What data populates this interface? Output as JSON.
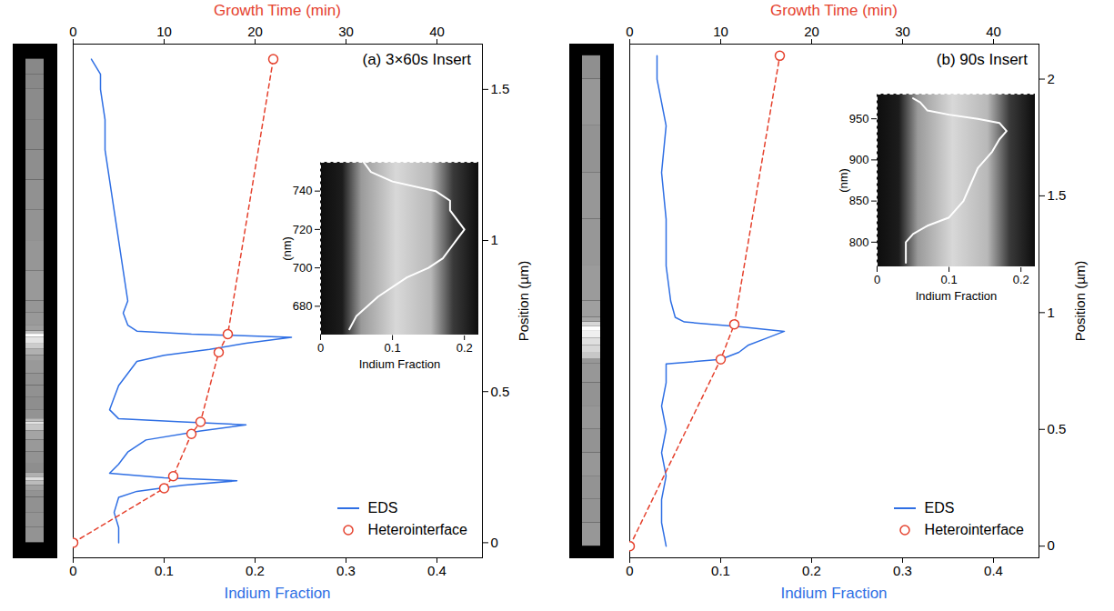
{
  "chart_data": [
    {
      "type": "line",
      "title": "(a) 3×60s Insert",
      "xlabel": "Indium Fraction",
      "x2label": "Growth Time (min)",
      "ylabel": "Position (µm)",
      "xlim": [
        0,
        0.45
      ],
      "xticks": [
        0,
        0.1,
        0.2,
        0.3,
        0.4
      ],
      "x2lim": [
        0,
        45
      ],
      "x2ticks": [
        0,
        10,
        20,
        30,
        40
      ],
      "ylim": [
        -0.05,
        1.65
      ],
      "yticks": [
        0,
        0.5,
        1,
        1.5
      ],
      "legend": "lower right",
      "series": [
        {
          "name": "EDS",
          "color": "#2f6fe4",
          "line_style": "solid",
          "x": [
            0.05,
            0.05,
            0.045,
            0.05,
            0.07,
            0.12,
            0.18,
            0.1,
            0.04,
            0.05,
            0.06,
            0.08,
            0.14,
            0.19,
            0.12,
            0.05,
            0.04,
            0.045,
            0.05,
            0.06,
            0.07,
            0.1,
            0.15,
            0.19,
            0.24,
            0.13,
            0.07,
            0.06,
            0.055,
            0.06,
            0.055,
            0.05,
            0.045,
            0.04,
            0.035,
            0.035,
            0.03,
            0.03,
            0.02
          ],
          "y": [
            0,
            0.05,
            0.1,
            0.15,
            0.17,
            0.19,
            0.205,
            0.215,
            0.23,
            0.26,
            0.3,
            0.34,
            0.37,
            0.39,
            0.4,
            0.41,
            0.44,
            0.48,
            0.52,
            0.56,
            0.6,
            0.62,
            0.64,
            0.66,
            0.68,
            0.69,
            0.7,
            0.72,
            0.76,
            0.8,
            0.9,
            1.0,
            1.1,
            1.2,
            1.3,
            1.4,
            1.5,
            1.55,
            1.6
          ]
        },
        {
          "name": "Heterointerface",
          "color": "#e5412d",
          "axis": "x2",
          "line_style": "dashed",
          "marker": "circle",
          "x": [
            0,
            10,
            11,
            13,
            14,
            16,
            17,
            22
          ],
          "y": [
            0,
            0.18,
            0.22,
            0.36,
            0.4,
            0.63,
            0.69,
            1.6
          ]
        }
      ],
      "inset": {
        "type": "line",
        "xlabel": "Indium Fraction",
        "ylabel": "(nm)",
        "xlim": [
          0,
          0.22
        ],
        "xticks": [
          0,
          0.1,
          0.2
        ],
        "ylim": [
          665,
          755
        ],
        "yticks": [
          680,
          700,
          720,
          740
        ],
        "series": [
          {
            "color": "#ffffff",
            "x": [
              0.04,
              0.05,
              0.08,
              0.12,
              0.15,
              0.17,
              0.18,
              0.19,
              0.2,
              0.19,
              0.18,
              0.18,
              0.16,
              0.1,
              0.07,
              0.06
            ],
            "y": [
              668,
              675,
              685,
              695,
              700,
              705,
              710,
              715,
              720,
              725,
              730,
              735,
              740,
              745,
              750,
              755
            ]
          }
        ]
      }
    },
    {
      "type": "line",
      "title": "(b) 90s Insert",
      "xlabel": "Indium Fraction",
      "x2label": "Growth Time (min)",
      "ylabel": "Position (µm)",
      "xlim": [
        0,
        0.45
      ],
      "xticks": [
        0,
        0.1,
        0.2,
        0.3,
        0.4
      ],
      "x2lim": [
        0,
        45
      ],
      "x2ticks": [
        0,
        10,
        20,
        30,
        40
      ],
      "ylim": [
        -0.05,
        2.15
      ],
      "yticks": [
        0,
        0.5,
        1,
        1.5,
        2
      ],
      "legend": "lower right",
      "series": [
        {
          "name": "EDS",
          "color": "#2f6fe4",
          "line_style": "solid",
          "x": [
            0.04,
            0.035,
            0.035,
            0.04,
            0.035,
            0.04,
            0.035,
            0.04,
            0.04,
            0.1,
            0.12,
            0.13,
            0.15,
            0.17,
            0.12,
            0.06,
            0.05,
            0.045,
            0.04,
            0.04,
            0.035,
            0.04,
            0.03,
            0.03
          ],
          "y": [
            0,
            0.1,
            0.2,
            0.3,
            0.4,
            0.5,
            0.6,
            0.7,
            0.78,
            0.8,
            0.83,
            0.86,
            0.89,
            0.92,
            0.94,
            0.96,
            0.98,
            1.05,
            1.2,
            1.4,
            1.6,
            1.8,
            2.0,
            2.1
          ]
        },
        {
          "name": "Heterointerface",
          "color": "#e5412d",
          "axis": "x2",
          "line_style": "dashed",
          "marker": "circle",
          "x": [
            0,
            10,
            11.5,
            16.5
          ],
          "y": [
            0,
            0.8,
            0.95,
            2.1
          ]
        }
      ],
      "inset": {
        "type": "line",
        "xlabel": "Indium Fraction",
        "ylabel": "(nm)",
        "xlim": [
          0,
          0.22
        ],
        "xticks": [
          0,
          0.1,
          0.2
        ],
        "ylim": [
          770,
          980
        ],
        "yticks": [
          800,
          850,
          900,
          950
        ],
        "series": [
          {
            "color": "#ffffff",
            "x": [
              0.04,
              0.04,
              0.04,
              0.05,
              0.07,
              0.1,
              0.12,
              0.13,
              0.14,
              0.16,
              0.17,
              0.18,
              0.17,
              0.14,
              0.1,
              0.07,
              0.06,
              0.05
            ],
            "y": [
              775,
              790,
              800,
              810,
              820,
              830,
              850,
              870,
              890,
              910,
              925,
              935,
              945,
              950,
              955,
              960,
              970,
              975
            ]
          }
        ]
      }
    }
  ]
}
